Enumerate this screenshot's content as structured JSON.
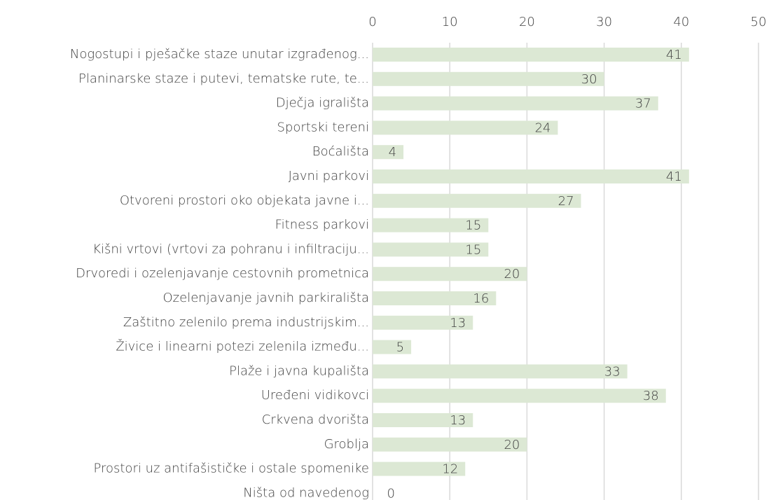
{
  "chart_data": {
    "type": "bar",
    "orientation": "horizontal",
    "categories": [
      "Nogostupi i pješačke staze unutar izgrađenog...",
      "Planinarske staze i putevi, tematske rute, te...",
      "Dječja igrališta",
      "Sportski tereni",
      "Boćališta",
      "Javni parkovi",
      "Otvoreni prostori oko objekata javne i...",
      "Fitness parkovi",
      "Kišni vrtovi (vrtovi za pohranu i infiltraciju...",
      "Drvoredi i ozelenjavanje cestovnih prometnica",
      "Ozelenjavanje javnih parkirališta",
      "Zaštitno zelenilo prema industrijskim...",
      "Živice i linearni potezi zelenila između...",
      "Plaže i javna kupališta",
      "Uređeni vidikovci",
      "Crkvena dvorišta",
      "Groblja",
      "Prostori uz antifašističke i ostale spomenike",
      "Ništa od navedenog"
    ],
    "values": [
      41,
      30,
      37,
      24,
      4,
      41,
      27,
      15,
      15,
      20,
      16,
      13,
      5,
      33,
      38,
      13,
      20,
      12,
      0
    ],
    "color": "#dce8d4",
    "xlim": [
      0,
      50
    ],
    "xticks": [
      0,
      10,
      20,
      30,
      40,
      50
    ],
    "grid": true
  }
}
